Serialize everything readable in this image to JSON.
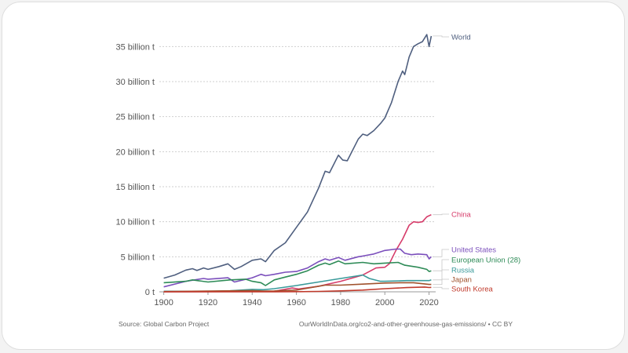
{
  "chart_data": {
    "type": "line",
    "title": "",
    "xlabel": "",
    "ylabel": "",
    "xlim": [
      1898,
      2023
    ],
    "ylim": [
      0,
      37500000000
    ],
    "x_ticks": [
      1900,
      1920,
      1940,
      1960,
      1980,
      2000,
      2020
    ],
    "y_ticks": [
      {
        "value": 0,
        "label": "0 t"
      },
      {
        "value": 5000000000,
        "label": "5 billion t"
      },
      {
        "value": 10000000000,
        "label": "10 billion t"
      },
      {
        "value": 15000000000,
        "label": "15 billion t"
      },
      {
        "value": 20000000000,
        "label": "20 billion t"
      },
      {
        "value": 25000000000,
        "label": "25 billion t"
      },
      {
        "value": 30000000000,
        "label": "30 billion t"
      },
      {
        "value": 35000000000,
        "label": "35 billion t"
      }
    ],
    "grid": true,
    "legend": "line-end labels on the right",
    "series": [
      {
        "name": "World",
        "color": "#4f5f7f",
        "points": [
          [
            1900,
            1950000000
          ],
          [
            1905,
            2400000000
          ],
          [
            1910,
            3100000000
          ],
          [
            1913,
            3300000000
          ],
          [
            1915,
            3050000000
          ],
          [
            1918,
            3400000000
          ],
          [
            1920,
            3200000000
          ],
          [
            1925,
            3600000000
          ],
          [
            1929,
            4000000000
          ],
          [
            1932,
            3200000000
          ],
          [
            1935,
            3600000000
          ],
          [
            1940,
            4500000000
          ],
          [
            1944,
            4700000000
          ],
          [
            1946,
            4300000000
          ],
          [
            1950,
            5900000000
          ],
          [
            1955,
            7000000000
          ],
          [
            1960,
            9200000000
          ],
          [
            1965,
            11400000000
          ],
          [
            1970,
            14800000000
          ],
          [
            1973,
            17200000000
          ],
          [
            1975,
            17000000000
          ],
          [
            1979,
            19500000000
          ],
          [
            1981,
            18800000000
          ],
          [
            1983,
            18700000000
          ],
          [
            1988,
            21800000000
          ],
          [
            1990,
            22500000000
          ],
          [
            1992,
            22300000000
          ],
          [
            1995,
            23000000000
          ],
          [
            1998,
            24000000000
          ],
          [
            2000,
            24800000000
          ],
          [
            2003,
            27000000000
          ],
          [
            2006,
            30000000000
          ],
          [
            2008,
            31500000000
          ],
          [
            2009,
            31000000000
          ],
          [
            2011,
            33500000000
          ],
          [
            2013,
            35000000000
          ],
          [
            2015,
            35400000000
          ],
          [
            2017,
            35700000000
          ],
          [
            2019,
            36700000000
          ],
          [
            2020,
            35000000000
          ],
          [
            2021,
            36500000000
          ]
        ]
      },
      {
        "name": "China",
        "color": "#d63c6a",
        "points": [
          [
            1900,
            0
          ],
          [
            1940,
            50000000
          ],
          [
            1950,
            80000000
          ],
          [
            1958,
            550000000
          ],
          [
            1961,
            400000000
          ],
          [
            1970,
            800000000
          ],
          [
            1980,
            1500000000
          ],
          [
            1990,
            2400000000
          ],
          [
            1996,
            3400000000
          ],
          [
            2000,
            3500000000
          ],
          [
            2002,
            4000000000
          ],
          [
            2005,
            5900000000
          ],
          [
            2008,
            7500000000
          ],
          [
            2011,
            9500000000
          ],
          [
            2013,
            10000000000
          ],
          [
            2015,
            9900000000
          ],
          [
            2017,
            10000000000
          ],
          [
            2019,
            10700000000
          ],
          [
            2021,
            11000000000
          ]
        ]
      },
      {
        "name": "United States",
        "color": "#7b4fbc",
        "points": [
          [
            1900,
            700000000
          ],
          [
            1910,
            1500000000
          ],
          [
            1918,
            1900000000
          ],
          [
            1920,
            1800000000
          ],
          [
            1929,
            2000000000
          ],
          [
            1932,
            1400000000
          ],
          [
            1940,
            2000000000
          ],
          [
            1944,
            2500000000
          ],
          [
            1946,
            2300000000
          ],
          [
            1950,
            2500000000
          ],
          [
            1955,
            2800000000
          ],
          [
            1960,
            2900000000
          ],
          [
            1965,
            3400000000
          ],
          [
            1970,
            4300000000
          ],
          [
            1973,
            4700000000
          ],
          [
            1975,
            4500000000
          ],
          [
            1979,
            4900000000
          ],
          [
            1982,
            4500000000
          ],
          [
            1988,
            5000000000
          ],
          [
            1990,
            5100000000
          ],
          [
            1995,
            5400000000
          ],
          [
            2000,
            5900000000
          ],
          [
            2005,
            6100000000
          ],
          [
            2007,
            6100000000
          ],
          [
            2009,
            5500000000
          ],
          [
            2012,
            5300000000
          ],
          [
            2015,
            5400000000
          ],
          [
            2019,
            5300000000
          ],
          [
            2020,
            4700000000
          ],
          [
            2021,
            5000000000
          ]
        ]
      },
      {
        "name": "European Union (28)",
        "color": "#2e8b57",
        "points": [
          [
            1900,
            1300000000
          ],
          [
            1910,
            1500000000
          ],
          [
            1913,
            1700000000
          ],
          [
            1920,
            1400000000
          ],
          [
            1930,
            1700000000
          ],
          [
            1937,
            1800000000
          ],
          [
            1940,
            1500000000
          ],
          [
            1944,
            1300000000
          ],
          [
            1946,
            900000000
          ],
          [
            1950,
            1700000000
          ],
          [
            1955,
            2100000000
          ],
          [
            1960,
            2500000000
          ],
          [
            1965,
            3000000000
          ],
          [
            1970,
            3800000000
          ],
          [
            1973,
            4100000000
          ],
          [
            1975,
            3900000000
          ],
          [
            1979,
            4400000000
          ],
          [
            1982,
            4000000000
          ],
          [
            1990,
            4200000000
          ],
          [
            1995,
            4000000000
          ],
          [
            2000,
            4100000000
          ],
          [
            2006,
            4200000000
          ],
          [
            2009,
            3800000000
          ],
          [
            2015,
            3500000000
          ],
          [
            2019,
            3200000000
          ],
          [
            2020,
            2900000000
          ],
          [
            2021,
            3000000000
          ]
        ]
      },
      {
        "name": "Russia",
        "color": "#3a9a9a",
        "points": [
          [
            1900,
            80000000
          ],
          [
            1920,
            50000000
          ],
          [
            1930,
            150000000
          ],
          [
            1940,
            350000000
          ],
          [
            1945,
            300000000
          ],
          [
            1950,
            450000000
          ],
          [
            1960,
            900000000
          ],
          [
            1970,
            1400000000
          ],
          [
            1980,
            1900000000
          ],
          [
            1988,
            2300000000
          ],
          [
            1990,
            2400000000
          ],
          [
            1993,
            1900000000
          ],
          [
            1998,
            1500000000
          ],
          [
            2000,
            1500000000
          ],
          [
            2010,
            1600000000
          ],
          [
            2020,
            1600000000
          ],
          [
            2021,
            1700000000
          ]
        ]
      },
      {
        "name": "Japan",
        "color": "#a0522d",
        "points": [
          [
            1900,
            30000000
          ],
          [
            1920,
            100000000
          ],
          [
            1940,
            180000000
          ],
          [
            1945,
            100000000
          ],
          [
            1950,
            120000000
          ],
          [
            1960,
            250000000
          ],
          [
            1970,
            800000000
          ],
          [
            1973,
            950000000
          ],
          [
            1980,
            950000000
          ],
          [
            1990,
            1100000000
          ],
          [
            2000,
            1250000000
          ],
          [
            2007,
            1300000000
          ],
          [
            2013,
            1300000000
          ],
          [
            2020,
            1050000000
          ],
          [
            2021,
            1050000000
          ]
        ]
      },
      {
        "name": "South Korea",
        "color": "#c0392b",
        "points": [
          [
            1900,
            0
          ],
          [
            1950,
            10000000
          ],
          [
            1960,
            20000000
          ],
          [
            1970,
            60000000
          ],
          [
            1980,
            130000000
          ],
          [
            1990,
            250000000
          ],
          [
            2000,
            450000000
          ],
          [
            2010,
            600000000
          ],
          [
            2018,
            680000000
          ],
          [
            2020,
            620000000
          ],
          [
            2021,
            640000000
          ]
        ]
      }
    ],
    "source": "Source: Global Carbon Project",
    "attribution": "OurWorldInData.org/co2-and-other-greenhouse-gas-emissions/ • CC BY"
  }
}
